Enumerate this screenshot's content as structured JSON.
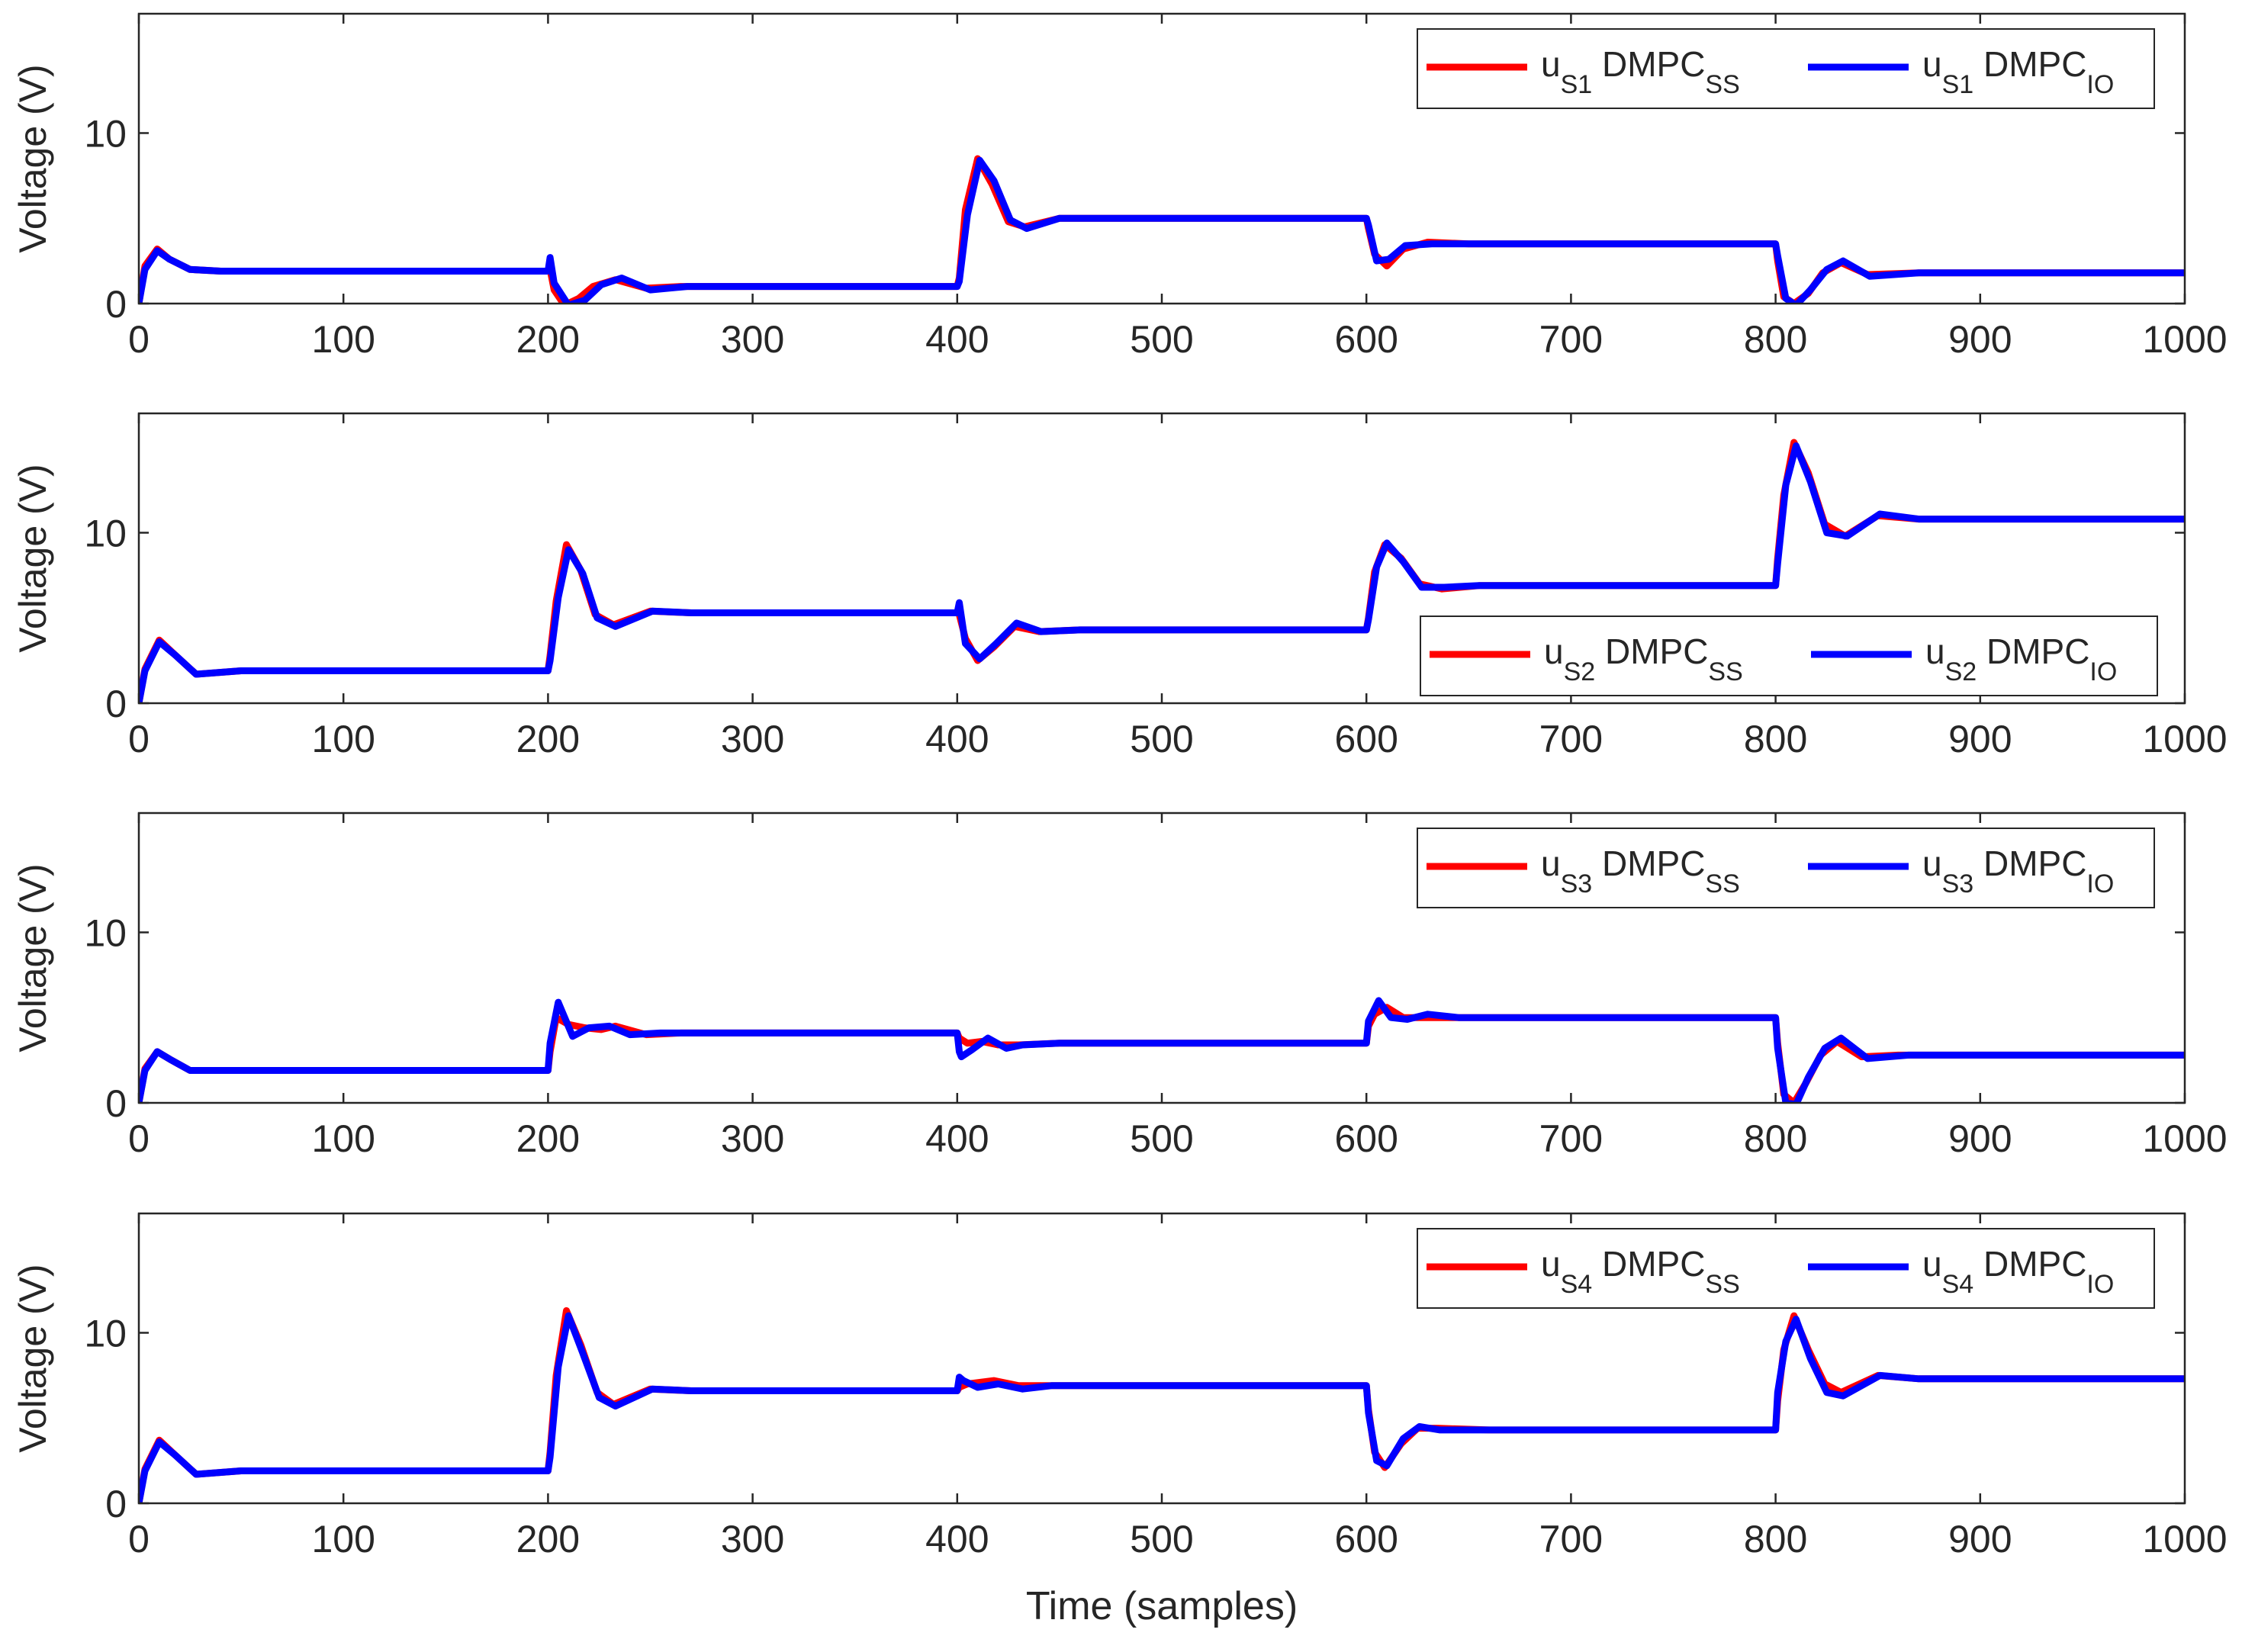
{
  "figure": {
    "xlabel": "Time (samples)"
  },
  "chart_data": [
    {
      "type": "line",
      "id": "panel-1",
      "xlabel": "",
      "ylabel": "Voltage (V)",
      "xlim": [
        0,
        1000
      ],
      "ylim": [
        0,
        17
      ],
      "xticks": [
        0,
        100,
        200,
        300,
        400,
        500,
        600,
        700,
        800,
        900,
        1000
      ],
      "yticks": [
        0,
        10
      ],
      "legend_location": "top-right",
      "series": [
        {
          "name": "uS1 DMPCSS",
          "label_main": "u",
          "label_sub": "S1",
          "label_mid": " DMPC",
          "label_sub2": "SS",
          "color": "#ff0000",
          "x": [
            0,
            3,
            9,
            15,
            25,
            40,
            60,
            200,
            201,
            203,
            208,
            215,
            222,
            233,
            248,
            265,
            400,
            401,
            404,
            410,
            417,
            425,
            433,
            450,
            600,
            601,
            604,
            610,
            618,
            630,
            650,
            800,
            801,
            804,
            809,
            816,
            823,
            832,
            845,
            870,
            1000
          ],
          "y": [
            0,
            2.2,
            3.2,
            2.6,
            2.0,
            1.9,
            1.9,
            1.9,
            2.0,
            0.8,
            -0.1,
            0.3,
            1.0,
            1.4,
            0.9,
            1.0,
            1.0,
            1.5,
            5.5,
            8.5,
            7.0,
            4.8,
            4.5,
            5.0,
            5.0,
            4.4,
            2.9,
            2.2,
            3.2,
            3.6,
            3.5,
            3.5,
            2.5,
            0.4,
            0.0,
            0.6,
            1.8,
            2.4,
            1.7,
            1.8,
            1.8
          ]
        },
        {
          "name": "uS1 DMPCIO",
          "label_main": "u",
          "label_sub": "S1",
          "label_mid": " DMPC",
          "label_sub2": "IO",
          "color": "#0000ff",
          "x": [
            0,
            3,
            9,
            15,
            25,
            40,
            60,
            200,
            201,
            203,
            210,
            218,
            226,
            236,
            250,
            268,
            400,
            401,
            405,
            411,
            418,
            426,
            434,
            450,
            600,
            601,
            605,
            611,
            619,
            632,
            650,
            800,
            801,
            805,
            810,
            817,
            825,
            833,
            846,
            870,
            1000
          ],
          "y": [
            0,
            2.0,
            3.1,
            2.6,
            2.0,
            1.9,
            1.9,
            1.9,
            2.7,
            1.2,
            -0.1,
            0.2,
            1.1,
            1.5,
            0.8,
            1.0,
            1.0,
            1.3,
            5.2,
            8.4,
            7.2,
            4.9,
            4.4,
            5.0,
            5.0,
            4.6,
            2.5,
            2.6,
            3.4,
            3.5,
            3.5,
            3.5,
            2.8,
            0.3,
            -0.1,
            0.8,
            2.0,
            2.5,
            1.6,
            1.8,
            1.8
          ]
        }
      ]
    },
    {
      "type": "line",
      "id": "panel-2",
      "xlabel": "",
      "ylabel": "Voltage (V)",
      "xlim": [
        0,
        1000
      ],
      "ylim": [
        0,
        17
      ],
      "xticks": [
        0,
        100,
        200,
        300,
        400,
        500,
        600,
        700,
        800,
        900,
        1000
      ],
      "yticks": [
        0,
        10
      ],
      "legend_location": "lower-right",
      "series": [
        {
          "name": "uS2 DMPCSS",
          "label_main": "u",
          "label_sub": "S2",
          "label_mid": " DMPC",
          "label_sub2": "SS",
          "color": "#ff0000",
          "x": [
            0,
            3,
            10,
            18,
            28,
            50,
            200,
            201,
            204,
            209,
            216,
            223,
            232,
            250,
            270,
            400,
            401,
            404,
            410,
            418,
            428,
            440,
            460,
            600,
            601,
            604,
            609,
            617,
            626,
            637,
            655,
            800,
            801,
            804,
            809,
            816,
            824,
            834,
            850,
            870,
            1000
          ],
          "y": [
            0,
            2.0,
            3.7,
            2.8,
            1.7,
            1.9,
            1.9,
            2.8,
            6.0,
            9.3,
            7.8,
            5.2,
            4.6,
            5.4,
            5.3,
            5.3,
            5.2,
            3.8,
            2.5,
            3.3,
            4.5,
            4.2,
            4.3,
            4.3,
            5.0,
            7.7,
            9.3,
            8.5,
            7.0,
            6.7,
            6.9,
            6.9,
            8.5,
            12.2,
            15.3,
            13.5,
            10.5,
            9.8,
            11.0,
            10.8,
            10.8
          ]
        },
        {
          "name": "uS2 DMPCIO",
          "label_main": "u",
          "label_sub": "S2",
          "label_mid": " DMPC",
          "label_sub2": "IO",
          "color": "#0000ff",
          "x": [
            0,
            3,
            10,
            18,
            28,
            50,
            200,
            201,
            205,
            210,
            217,
            224,
            233,
            251,
            270,
            400,
            401,
            404,
            411,
            419,
            429,
            441,
            460,
            600,
            601,
            605,
            610,
            618,
            627,
            638,
            655,
            800,
            801,
            805,
            810,
            817,
            825,
            835,
            851,
            870,
            1000
          ],
          "y": [
            0,
            1.9,
            3.6,
            2.8,
            1.7,
            1.9,
            1.9,
            2.5,
            6.2,
            9.0,
            7.6,
            5.0,
            4.5,
            5.4,
            5.3,
            5.3,
            5.9,
            3.5,
            2.6,
            3.5,
            4.7,
            4.2,
            4.3,
            4.3,
            4.9,
            8.0,
            9.4,
            8.3,
            6.8,
            6.8,
            6.9,
            6.9,
            8.2,
            12.8,
            15.1,
            13.0,
            10.0,
            9.8,
            11.1,
            10.8,
            10.8
          ]
        }
      ]
    },
    {
      "type": "line",
      "id": "panel-3",
      "xlabel": "",
      "ylabel": "Voltage (V)",
      "xlim": [
        0,
        1000
      ],
      "ylim": [
        0,
        17
      ],
      "xticks": [
        0,
        100,
        200,
        300,
        400,
        500,
        600,
        700,
        800,
        900,
        1000
      ],
      "yticks": [
        0,
        10
      ],
      "legend_location": "top-right",
      "series": [
        {
          "name": "uS3 DMPCSS",
          "label_main": "u",
          "label_sub": "S3",
          "label_mid": " DMPC",
          "label_sub2": "SS",
          "color": "#ff0000",
          "x": [
            0,
            3,
            9,
            16,
            25,
            40,
            60,
            200,
            201,
            204,
            210,
            218,
            226,
            233,
            248,
            265,
            400,
            401,
            405,
            412,
            420,
            430,
            450,
            600,
            601,
            604,
            610,
            618,
            626,
            640,
            800,
            801,
            804,
            809,
            815,
            822,
            830,
            842,
            860,
            1000
          ],
          "y": [
            0,
            2.0,
            3.0,
            2.5,
            1.9,
            1.9,
            1.9,
            1.9,
            3.0,
            5.0,
            4.6,
            4.4,
            4.3,
            4.5,
            4.0,
            4.1,
            4.1,
            3.8,
            3.5,
            3.6,
            3.4,
            3.4,
            3.5,
            3.5,
            4.5,
            5.2,
            5.6,
            5.0,
            5.0,
            5.0,
            5.0,
            3.5,
            0.5,
            0.0,
            1.2,
            2.8,
            3.6,
            2.7,
            2.8,
            2.8
          ]
        },
        {
          "name": "uS3 DMPCIO",
          "label_main": "u",
          "label_sub": "S3",
          "label_mid": " DMPC",
          "label_sub2": "IO",
          "color": "#0000ff",
          "x": [
            0,
            3,
            9,
            16,
            25,
            40,
            60,
            200,
            201,
            205,
            212,
            220,
            230,
            240,
            255,
            270,
            400,
            401,
            402,
            407,
            415,
            424,
            432,
            450,
            600,
            601,
            606,
            612,
            620,
            630,
            645,
            800,
            801,
            805,
            810,
            816,
            824,
            832,
            845,
            865,
            1000
          ],
          "y": [
            0,
            1.9,
            3.0,
            2.5,
            1.9,
            1.9,
            1.9,
            1.9,
            3.5,
            5.9,
            3.9,
            4.4,
            4.5,
            4.0,
            4.1,
            4.1,
            4.1,
            3.0,
            2.7,
            3.1,
            3.8,
            3.2,
            3.4,
            3.5,
            3.5,
            4.8,
            6.0,
            5.0,
            4.9,
            5.2,
            5.0,
            5.0,
            3.2,
            0.0,
            -0.1,
            1.5,
            3.2,
            3.8,
            2.6,
            2.8,
            2.8
          ]
        }
      ]
    },
    {
      "type": "line",
      "id": "panel-4",
      "xlabel": "Time (samples)",
      "ylabel": "Voltage (V)",
      "xlim": [
        0,
        1000
      ],
      "ylim": [
        0,
        17
      ],
      "xticks": [
        0,
        100,
        200,
        300,
        400,
        500,
        600,
        700,
        800,
        900,
        1000
      ],
      "yticks": [
        0,
        10
      ],
      "legend_location": "top-right",
      "series": [
        {
          "name": "uS4 DMPCSS",
          "label_main": "u",
          "label_sub": "S4",
          "label_mid": " DMPC",
          "label_sub2": "SS",
          "color": "#ff0000",
          "x": [
            0,
            3,
            10,
            18,
            28,
            50,
            200,
            201,
            204,
            209,
            216,
            224,
            232,
            250,
            270,
            400,
            401,
            405,
            418,
            430,
            445,
            470,
            600,
            601,
            604,
            609,
            617,
            625,
            635,
            660,
            800,
            801,
            804,
            809,
            816,
            824,
            832,
            850,
            870,
            1000
          ],
          "y": [
            0,
            2.0,
            3.7,
            2.8,
            1.7,
            1.9,
            1.9,
            3.0,
            7.5,
            11.3,
            9.3,
            6.5,
            5.8,
            6.7,
            6.6,
            6.6,
            6.8,
            7.0,
            7.2,
            6.9,
            6.9,
            6.9,
            6.9,
            5.5,
            3.0,
            2.1,
            3.5,
            4.4,
            4.4,
            4.3,
            4.3,
            6.0,
            9.0,
            11.0,
            9.0,
            7.0,
            6.5,
            7.5,
            7.3,
            7.3
          ]
        },
        {
          "name": "uS4 DMPCIO",
          "label_main": "u",
          "label_sub": "S4",
          "label_mid": " DMPC",
          "label_sub2": "IO",
          "color": "#0000ff",
          "x": [
            0,
            3,
            10,
            18,
            28,
            50,
            200,
            201,
            205,
            210,
            217,
            225,
            233,
            251,
            270,
            400,
            401,
            403,
            410,
            420,
            432,
            446,
            470,
            600,
            601,
            605,
            610,
            618,
            626,
            636,
            660,
            800,
            801,
            805,
            810,
            817,
            825,
            833,
            851,
            870,
            1000
          ],
          "y": [
            0,
            1.9,
            3.6,
            2.8,
            1.7,
            1.9,
            1.9,
            2.7,
            8.0,
            11.0,
            8.8,
            6.2,
            5.7,
            6.7,
            6.6,
            6.6,
            7.4,
            7.2,
            6.8,
            7.0,
            6.7,
            6.9,
            6.9,
            6.9,
            5.3,
            2.5,
            2.2,
            3.8,
            4.5,
            4.3,
            4.3,
            4.3,
            6.5,
            9.5,
            10.8,
            8.5,
            6.5,
            6.3,
            7.5,
            7.3,
            7.3
          ]
        }
      ]
    }
  ]
}
